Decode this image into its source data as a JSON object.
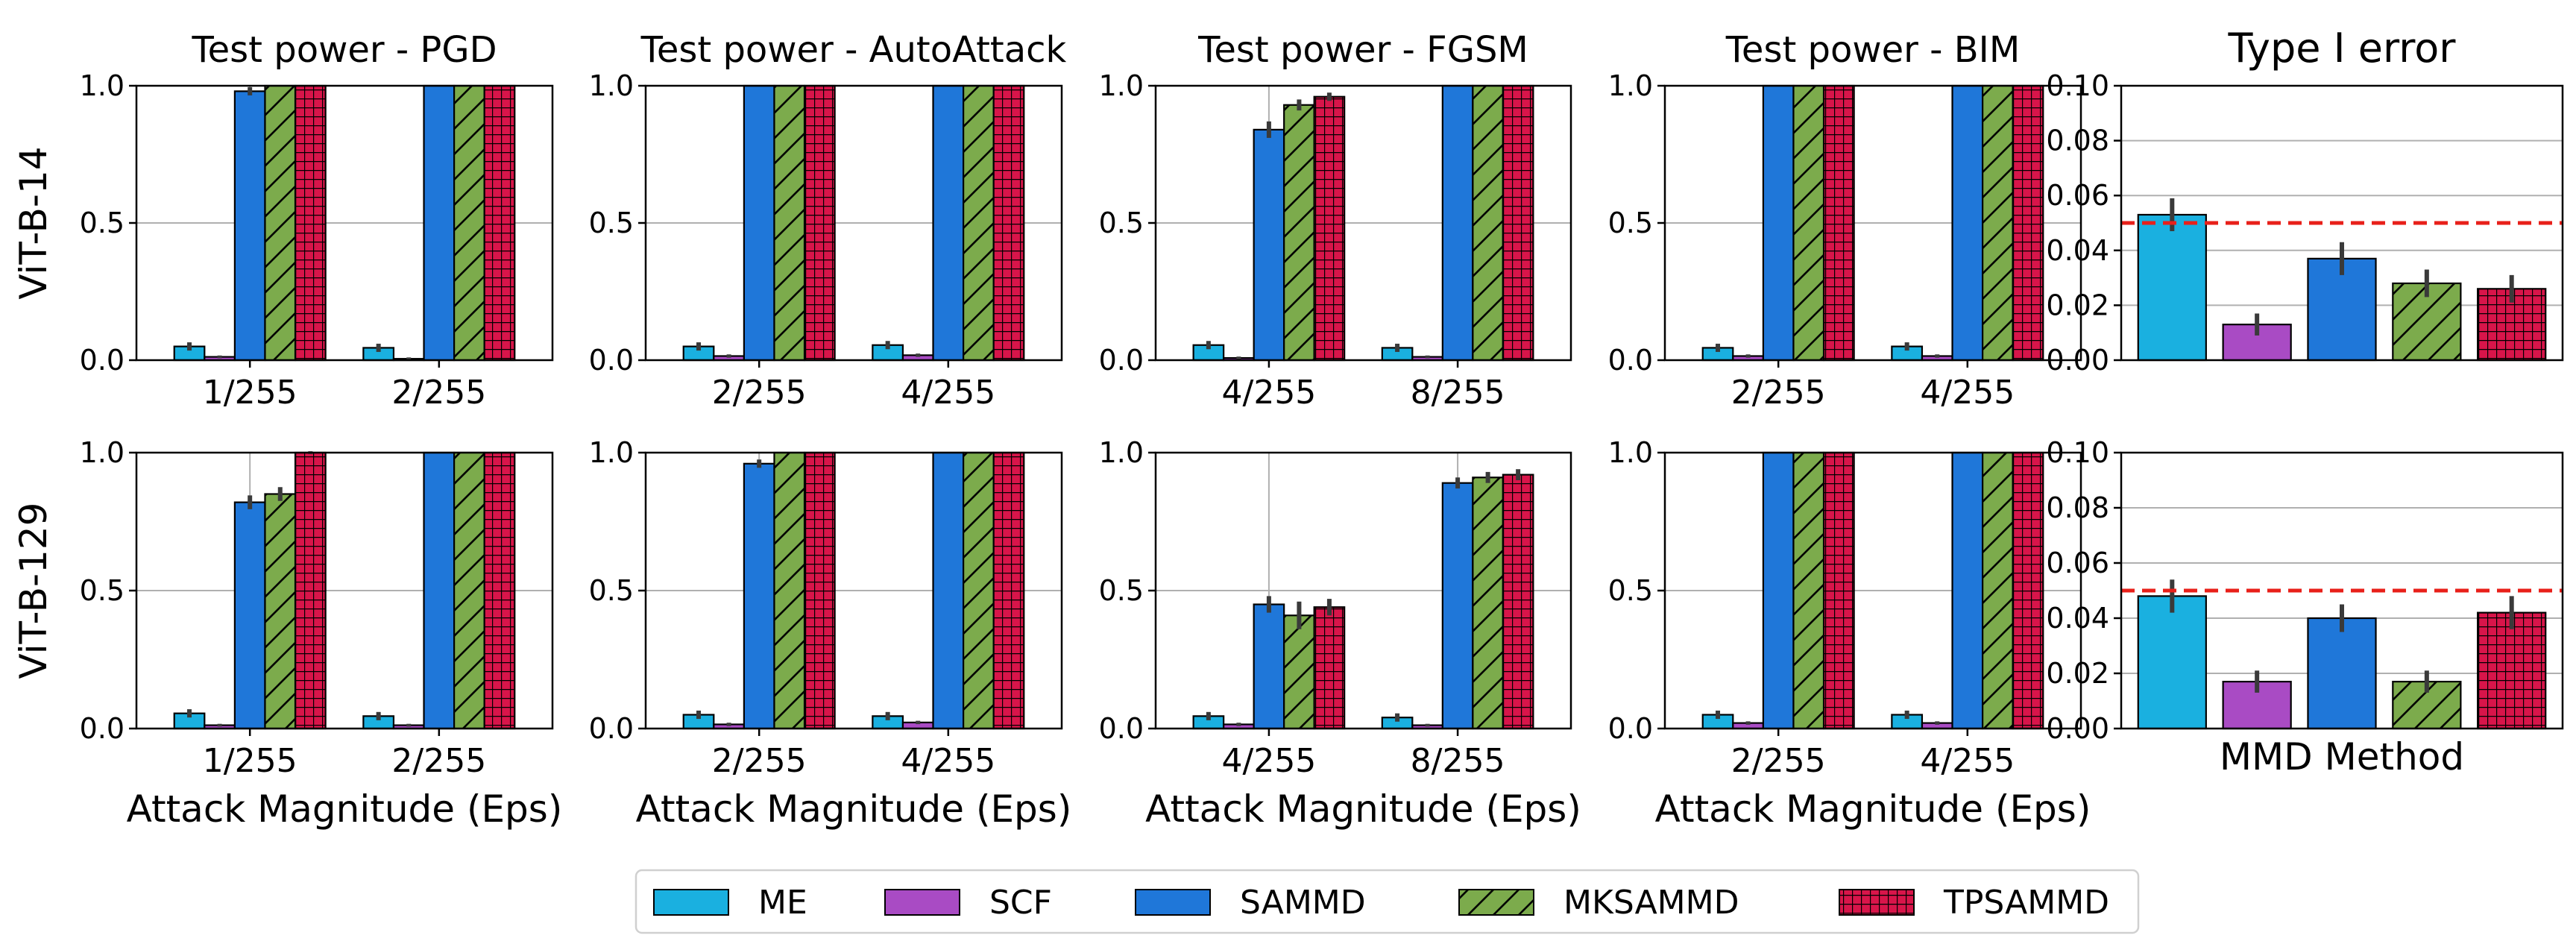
{
  "chart_data": {
    "type": "bar",
    "legend": {
      "position": "bottom-center",
      "entries": [
        {
          "name": "ME",
          "color": "#1ab0e0",
          "hatch": "none"
        },
        {
          "name": "SCF",
          "color": "#a94bc4",
          "hatch": "none"
        },
        {
          "name": "SAMMD",
          "color": "#1f77d9",
          "hatch": "none"
        },
        {
          "name": "MKSAMMD",
          "color": "#7cab4c",
          "hatch": "diagonal"
        },
        {
          "name": "TPSAMMD",
          "color": "#d8154a",
          "hatch": "grid"
        }
      ]
    },
    "power_panels": [
      {
        "title": "Test power - PGD",
        "row": 0,
        "col": 0,
        "ylabel": "ViT-B-14",
        "xlabel": "",
        "categories": [
          "1/255",
          "2/255"
        ],
        "ylim": [
          0,
          1
        ],
        "yticks": [
          "0.0",
          "0.5",
          "1.0"
        ],
        "series": [
          {
            "name": "ME",
            "values": [
              0.05,
              0.045
            ],
            "errors": [
              0.015,
              0.015
            ]
          },
          {
            "name": "SCF",
            "values": [
              0.012,
              0.005
            ],
            "errors": [
              0.005,
              0.005
            ]
          },
          {
            "name": "SAMMD",
            "values": [
              0.98,
              1.0
            ],
            "errors": [
              0.015,
              0.0
            ]
          },
          {
            "name": "MKSAMMD",
            "values": [
              1.0,
              1.0
            ],
            "errors": [
              0.0,
              0.0
            ]
          },
          {
            "name": "TPSAMMD",
            "values": [
              1.0,
              1.0
            ],
            "errors": [
              0.0,
              0.0
            ]
          }
        ]
      },
      {
        "title": "Test power - AutoAttack",
        "row": 0,
        "col": 1,
        "ylabel": "",
        "xlabel": "",
        "categories": [
          "2/255",
          "4/255"
        ],
        "ylim": [
          0,
          1
        ],
        "yticks": [
          "0.0",
          "0.5",
          "1.0"
        ],
        "series": [
          {
            "name": "ME",
            "values": [
              0.05,
              0.055
            ],
            "errors": [
              0.015,
              0.015
            ]
          },
          {
            "name": "SCF",
            "values": [
              0.015,
              0.018
            ],
            "errors": [
              0.006,
              0.006
            ]
          },
          {
            "name": "SAMMD",
            "values": [
              1.0,
              1.0
            ],
            "errors": [
              0.0,
              0.0
            ]
          },
          {
            "name": "MKSAMMD",
            "values": [
              1.0,
              1.0
            ],
            "errors": [
              0.0,
              0.0
            ]
          },
          {
            "name": "TPSAMMD",
            "values": [
              1.0,
              1.0
            ],
            "errors": [
              0.0,
              0.0
            ]
          }
        ]
      },
      {
        "title": "Test power - FGSM",
        "row": 0,
        "col": 2,
        "ylabel": "",
        "xlabel": "",
        "categories": [
          "4/255",
          "8/255"
        ],
        "ylim": [
          0,
          1
        ],
        "yticks": [
          "0.0",
          "0.5",
          "1.0"
        ],
        "series": [
          {
            "name": "ME",
            "values": [
              0.055,
              0.045
            ],
            "errors": [
              0.015,
              0.015
            ]
          },
          {
            "name": "SCF",
            "values": [
              0.008,
              0.012
            ],
            "errors": [
              0.005,
              0.005
            ]
          },
          {
            "name": "SAMMD",
            "values": [
              0.84,
              1.0
            ],
            "errors": [
              0.03,
              0.0
            ]
          },
          {
            "name": "MKSAMMD",
            "values": [
              0.93,
              1.0
            ],
            "errors": [
              0.02,
              0.0
            ]
          },
          {
            "name": "TPSAMMD",
            "values": [
              0.96,
              1.0
            ],
            "errors": [
              0.015,
              0.0
            ]
          }
        ]
      },
      {
        "title": "Test power - BIM",
        "row": 0,
        "col": 3,
        "ylabel": "",
        "xlabel": "",
        "categories": [
          "2/255",
          "4/255"
        ],
        "ylim": [
          0,
          1
        ],
        "yticks": [
          "0.0",
          "0.5",
          "1.0"
        ],
        "series": [
          {
            "name": "ME",
            "values": [
              0.045,
              0.05
            ],
            "errors": [
              0.015,
              0.015
            ]
          },
          {
            "name": "SCF",
            "values": [
              0.015,
              0.015
            ],
            "errors": [
              0.006,
              0.006
            ]
          },
          {
            "name": "SAMMD",
            "values": [
              1.0,
              1.0
            ],
            "errors": [
              0.0,
              0.0
            ]
          },
          {
            "name": "MKSAMMD",
            "values": [
              1.0,
              1.0
            ],
            "errors": [
              0.0,
              0.0
            ]
          },
          {
            "name": "TPSAMMD",
            "values": [
              1.0,
              1.0
            ],
            "errors": [
              0.0,
              0.0
            ]
          }
        ]
      },
      {
        "title": "",
        "row": 1,
        "col": 0,
        "ylabel": "ViT-B-129",
        "xlabel": "Attack Magnitude (Eps)",
        "categories": [
          "1/255",
          "2/255"
        ],
        "ylim": [
          0,
          1
        ],
        "yticks": [
          "0.0",
          "0.5",
          "1.0"
        ],
        "series": [
          {
            "name": "ME",
            "values": [
              0.055,
              0.045
            ],
            "errors": [
              0.015,
              0.015
            ]
          },
          {
            "name": "SCF",
            "values": [
              0.012,
              0.012
            ],
            "errors": [
              0.005,
              0.005
            ]
          },
          {
            "name": "SAMMD",
            "values": [
              0.82,
              1.0
            ],
            "errors": [
              0.025,
              0.0
            ]
          },
          {
            "name": "MKSAMMD",
            "values": [
              0.85,
              1.0
            ],
            "errors": [
              0.025,
              0.0
            ]
          },
          {
            "name": "TPSAMMD",
            "values": [
              1.0,
              1.0
            ],
            "errors": [
              0.005,
              0.0
            ]
          }
        ]
      },
      {
        "title": "",
        "row": 1,
        "col": 1,
        "ylabel": "",
        "xlabel": "Attack Magnitude (Eps)",
        "categories": [
          "2/255",
          "4/255"
        ],
        "ylim": [
          0,
          1
        ],
        "yticks": [
          "0.0",
          "0.5",
          "1.0"
        ],
        "series": [
          {
            "name": "ME",
            "values": [
              0.05,
              0.045
            ],
            "errors": [
              0.015,
              0.015
            ]
          },
          {
            "name": "SCF",
            "values": [
              0.015,
              0.022
            ],
            "errors": [
              0.006,
              0.006
            ]
          },
          {
            "name": "SAMMD",
            "values": [
              0.96,
              1.0
            ],
            "errors": [
              0.015,
              0.0
            ]
          },
          {
            "name": "MKSAMMD",
            "values": [
              1.0,
              1.0
            ],
            "errors": [
              0.0,
              0.0
            ]
          },
          {
            "name": "TPSAMMD",
            "values": [
              1.0,
              1.0
            ],
            "errors": [
              0.0,
              0.0
            ]
          }
        ]
      },
      {
        "title": "",
        "row": 1,
        "col": 2,
        "ylabel": "",
        "xlabel": "Attack Magnitude (Eps)",
        "categories": [
          "4/255",
          "8/255"
        ],
        "ylim": [
          0,
          1
        ],
        "yticks": [
          "0.0",
          "0.5",
          "1.0"
        ],
        "series": [
          {
            "name": "ME",
            "values": [
              0.045,
              0.04
            ],
            "errors": [
              0.015,
              0.015
            ]
          },
          {
            "name": "SCF",
            "values": [
              0.015,
              0.012
            ],
            "errors": [
              0.006,
              0.005
            ]
          },
          {
            "name": "SAMMD",
            "values": [
              0.45,
              0.89
            ],
            "errors": [
              0.03,
              0.02
            ]
          },
          {
            "name": "MKSAMMD",
            "values": [
              0.41,
              0.91
            ],
            "errors": [
              0.05,
              0.02
            ]
          },
          {
            "name": "TPSAMMD",
            "values": [
              0.44,
              0.92
            ],
            "errors": [
              0.03,
              0.02
            ]
          }
        ]
      },
      {
        "title": "",
        "row": 1,
        "col": 3,
        "ylabel": "",
        "xlabel": "Attack Magnitude (Eps)",
        "categories": [
          "2/255",
          "4/255"
        ],
        "ylim": [
          0,
          1
        ],
        "yticks": [
          "0.0",
          "0.5",
          "1.0"
        ],
        "series": [
          {
            "name": "ME",
            "values": [
              0.05,
              0.05
            ],
            "errors": [
              0.015,
              0.015
            ]
          },
          {
            "name": "SCF",
            "values": [
              0.02,
              0.02
            ],
            "errors": [
              0.006,
              0.006
            ]
          },
          {
            "name": "SAMMD",
            "values": [
              1.0,
              1.0
            ],
            "errors": [
              0.0,
              0.0
            ]
          },
          {
            "name": "MKSAMMD",
            "values": [
              1.0,
              1.0
            ],
            "errors": [
              0.0,
              0.0
            ]
          },
          {
            "name": "TPSAMMD",
            "values": [
              1.0,
              1.0
            ],
            "errors": [
              0.0,
              0.0
            ]
          }
        ]
      }
    ],
    "type1_panels": [
      {
        "title": "Type I error",
        "row": 0,
        "xlabel": "",
        "methods": [
          "ME",
          "SCF",
          "SAMMD",
          "MKSAMMD",
          "TPSAMMD"
        ],
        "values": [
          0.053,
          0.013,
          0.037,
          0.028,
          0.026
        ],
        "errors": [
          0.006,
          0.004,
          0.006,
          0.005,
          0.005
        ],
        "ylim": [
          0,
          0.1
        ],
        "yticks": [
          "0.00",
          "0.02",
          "0.04",
          "0.06",
          "0.08",
          "0.10"
        ],
        "reference_line": 0.05
      },
      {
        "title": "",
        "row": 1,
        "xlabel": "MMD Method",
        "methods": [
          "ME",
          "SCF",
          "SAMMD",
          "MKSAMMD",
          "TPSAMMD"
        ],
        "values": [
          0.048,
          0.017,
          0.04,
          0.017,
          0.042
        ],
        "errors": [
          0.006,
          0.004,
          0.005,
          0.004,
          0.006
        ],
        "ylim": [
          0,
          0.1
        ],
        "yticks": [
          "0.00",
          "0.02",
          "0.04",
          "0.06",
          "0.08",
          "0.10"
        ],
        "reference_line": 0.05
      }
    ]
  }
}
